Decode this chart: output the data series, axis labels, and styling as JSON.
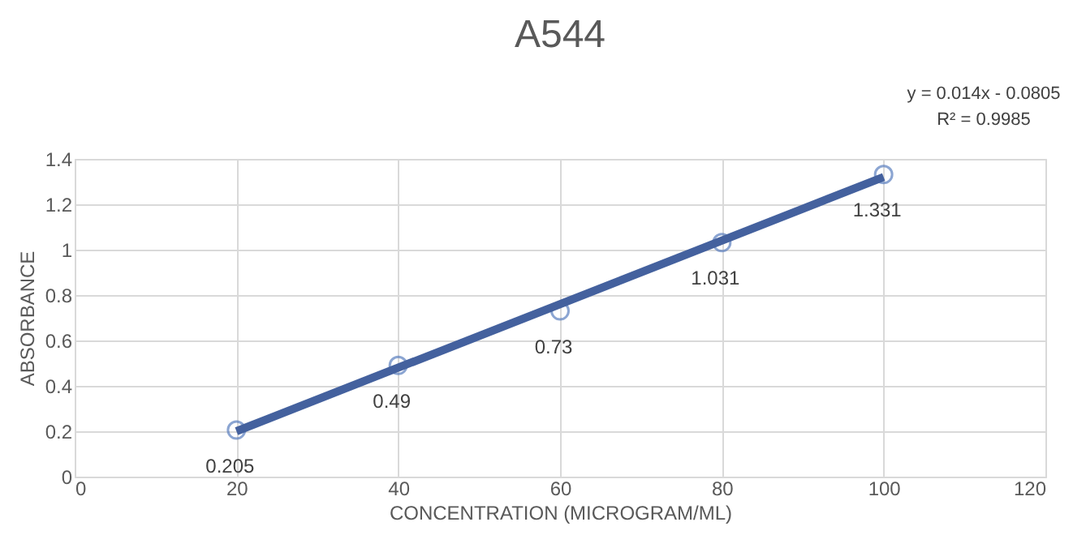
{
  "chart_data": {
    "type": "scatter",
    "title": "A544",
    "xlabel": "CONCENTRATION (MICROGRAM/ML)",
    "ylabel": "ABSORBANCE",
    "x": [
      20,
      40,
      60,
      80,
      100
    ],
    "series": [
      {
        "color": "#5b7fbf",
        "marker": "circle",
        "values": [
          0.205,
          0.49,
          0.73,
          1.031,
          1.331
        ],
        "value_labels": [
          "0.205",
          "0.49",
          "0.73",
          "1.031",
          "1.331"
        ]
      },
      {
        "type": "line",
        "color": "#44619e",
        "x": [
          20,
          100
        ],
        "values": [
          0.2,
          1.32
        ]
      }
    ],
    "annotations": [
      "y = 0.014x - 0.0805",
      "R² = 0.9985"
    ],
    "xlim": [
      0,
      120
    ],
    "xticks": [
      0,
      20,
      40,
      60,
      80,
      100,
      120
    ],
    "ylim": [
      0,
      1.4
    ],
    "yticks": [
      0,
      0.2,
      0.4,
      0.6,
      0.8,
      1,
      1.2,
      1.4
    ],
    "grid": true
  }
}
